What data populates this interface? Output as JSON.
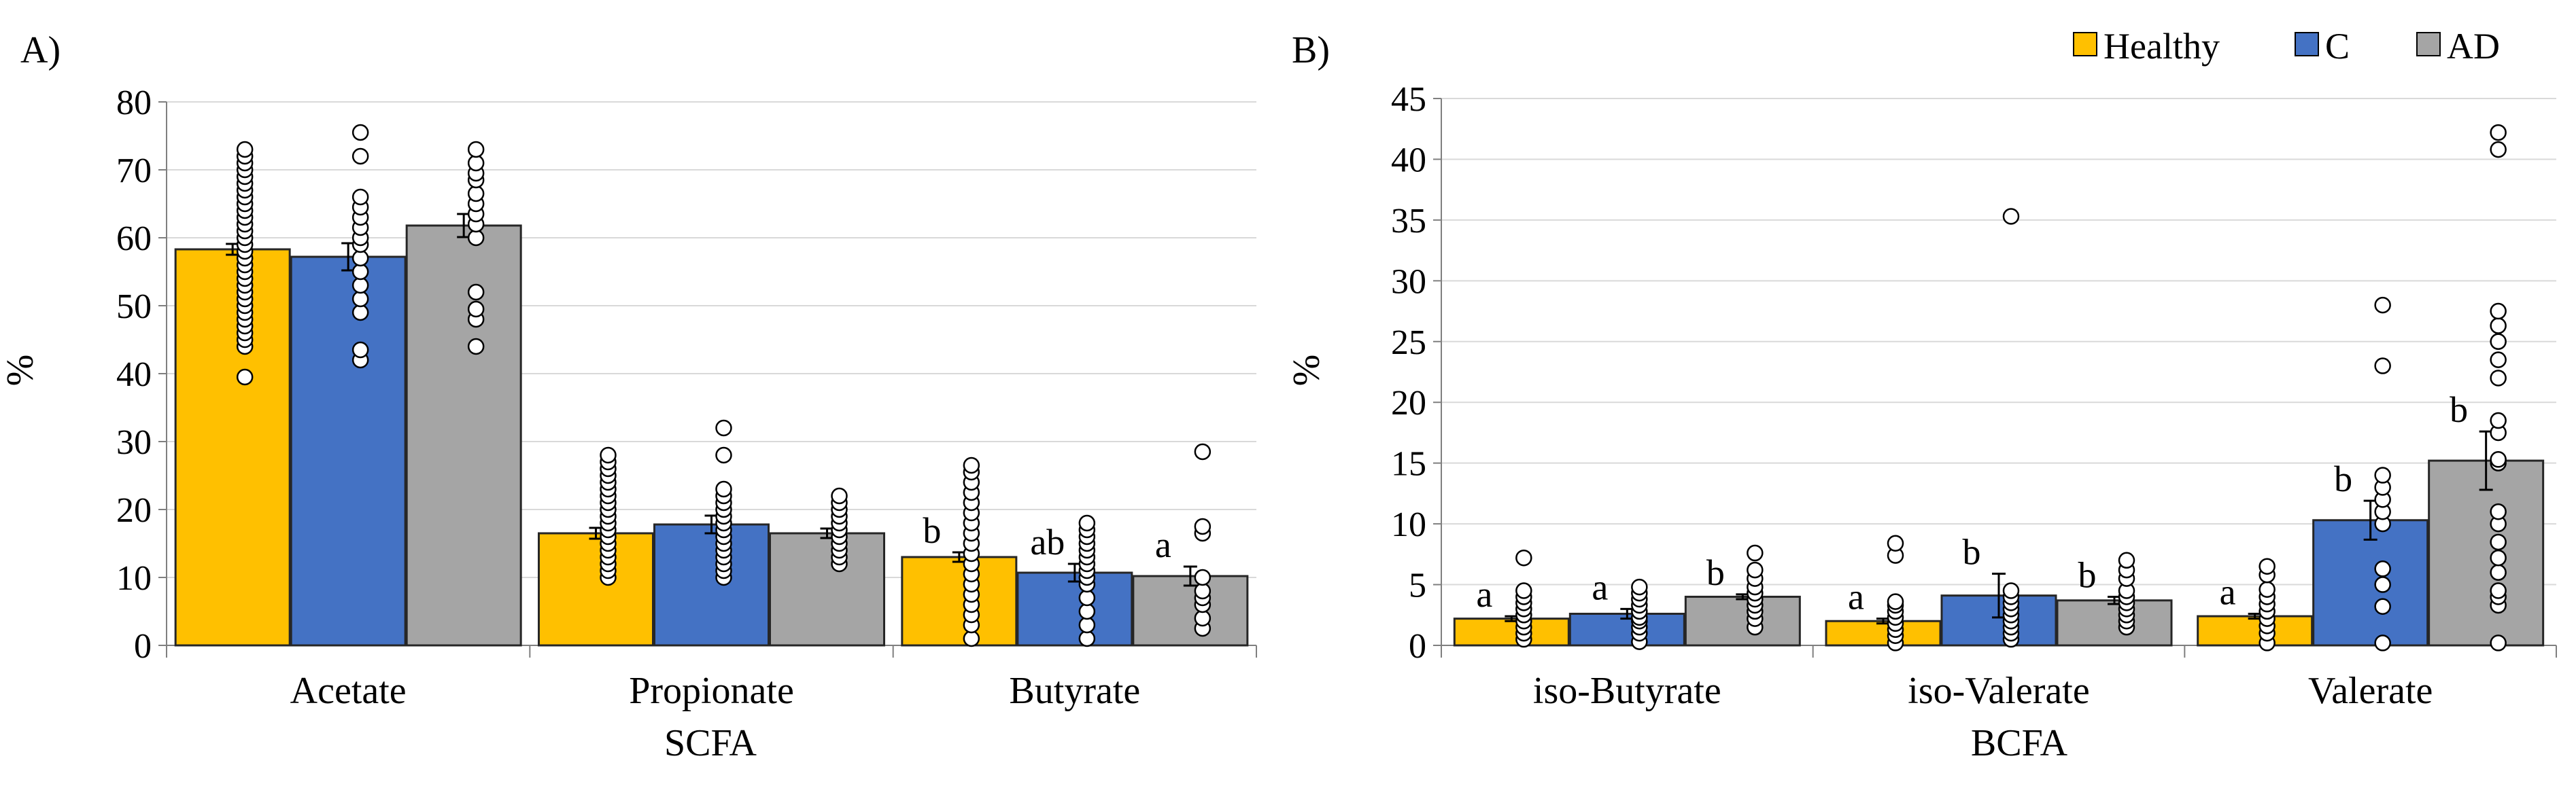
{
  "legend": {
    "series": [
      {
        "name": "Healthy",
        "color": "#FFC000"
      },
      {
        "name": "C",
        "color": "#4472C4"
      },
      {
        "name": "AD",
        "color": "#A5A5A5"
      }
    ]
  },
  "chart_data": [
    {
      "type": "bar",
      "panel_label": "A)",
      "ylabel": "%",
      "xlabel": "SCFA",
      "ylim": [
        0,
        80
      ],
      "yticks": [
        0,
        10,
        20,
        30,
        40,
        50,
        60,
        70,
        80
      ],
      "grid": true,
      "categories": [
        "Acetate",
        "Propionate",
        "Butyrate"
      ],
      "series": [
        {
          "name": "Healthy",
          "values": [
            58.3,
            16.5,
            13.0
          ],
          "errors": [
            0.8,
            0.8,
            0.7
          ],
          "letters": [
            "",
            "",
            "b"
          ]
        },
        {
          "name": "C",
          "values": [
            57.2,
            17.8,
            10.7
          ],
          "errors": [
            2.0,
            1.3,
            1.3
          ],
          "letters": [
            "",
            "",
            "ab"
          ]
        },
        {
          "name": "AD",
          "values": [
            61.8,
            16.5,
            10.2
          ],
          "errors": [
            1.7,
            0.7,
            1.4
          ],
          "letters": [
            "",
            "",
            "a"
          ]
        }
      ],
      "points": [
        [
          [
            39.5,
            44,
            45,
            46,
            47,
            48,
            49,
            50,
            51,
            52,
            53,
            54,
            55,
            56,
            57,
            58,
            59,
            60,
            61,
            62,
            63,
            64,
            65,
            66,
            67,
            68,
            69,
            70,
            71,
            72,
            73
          ],
          [
            42,
            43.5,
            49,
            51,
            53,
            55,
            57,
            59,
            60,
            61.5,
            63,
            64.5,
            66,
            72,
            75.5
          ],
          [
            44,
            48,
            49.5,
            52,
            60,
            62,
            63.5,
            65,
            66.5,
            68.5,
            69.5,
            71,
            73
          ]
        ],
        [
          [
            10,
            11,
            12,
            13,
            14,
            15,
            16,
            17,
            18,
            19,
            20,
            21,
            22,
            23,
            24,
            25,
            26,
            27,
            28
          ],
          [
            10,
            11,
            12,
            13,
            14,
            15,
            16,
            17,
            18,
            19,
            20,
            21,
            22,
            23,
            28,
            32
          ],
          [
            12,
            13,
            14,
            15,
            16,
            17,
            18,
            19,
            20,
            21,
            22
          ]
        ],
        [
          [
            1,
            3,
            4.5,
            6,
            7.5,
            9,
            10.5,
            12,
            13.5,
            15,
            16.5,
            18,
            19.5,
            21,
            22.5,
            24,
            25.5,
            26.5
          ],
          [
            1,
            3,
            5,
            7,
            9,
            10,
            11,
            12,
            13,
            14,
            15,
            16,
            17,
            18
          ],
          [
            2.5,
            4,
            6,
            7,
            8,
            10,
            16.5,
            17.5,
            28.5
          ]
        ]
      ]
    },
    {
      "type": "bar",
      "panel_label": "B)",
      "ylabel": "%",
      "xlabel": "BCFA",
      "ylim": [
        0,
        45
      ],
      "yticks": [
        0,
        5,
        10,
        15,
        20,
        25,
        30,
        35,
        40,
        45
      ],
      "grid": true,
      "categories": [
        "iso-Butyrate",
        "iso-Valerate",
        "Valerate"
      ],
      "series": [
        {
          "name": "Healthy",
          "values": [
            2.2,
            2.0,
            2.4
          ],
          "errors": [
            0.2,
            0.2,
            0.2
          ],
          "letters": [
            "a",
            "a",
            "a"
          ]
        },
        {
          "name": "C",
          "values": [
            2.6,
            4.1,
            10.3
          ],
          "errors": [
            0.4,
            1.8,
            1.6
          ],
          "letters": [
            "a",
            "b",
            "b"
          ]
        },
        {
          "name": "AD",
          "values": [
            4.0,
            3.7,
            15.2
          ],
          "errors": [
            0.2,
            0.3,
            2.4
          ],
          "letters": [
            "b",
            "b",
            "b"
          ]
        }
      ],
      "points": [
        [
          [
            0.5,
            1,
            1.5,
            2,
            2.5,
            3,
            3.5,
            4,
            4.5,
            7.2
          ],
          [
            0.3,
            1,
            1.5,
            2,
            2.3,
            2.8,
            3.3,
            3.8,
            4.3,
            4.8
          ],
          [
            1.5,
            2.2,
            2.8,
            3.3,
            3.8,
            4.3,
            4.8,
            5.5,
            6.2,
            7.6
          ]
        ],
        [
          [
            0.2,
            0.8,
            1.3,
            1.8,
            2.3,
            2.8,
            3.3,
            3.6,
            7.4,
            8.4
          ],
          [
            0.5,
            1,
            1.5,
            2,
            2.5,
            3,
            3.5,
            4,
            4.5,
            35.3
          ],
          [
            1.5,
            2,
            2.5,
            3,
            3.5,
            4,
            4.5,
            5.5,
            6.2,
            7
          ]
        ],
        [
          [
            0.2,
            1,
            1.6,
            2.2,
            2.8,
            3.4,
            4,
            4.6,
            5.8,
            6.5
          ],
          [
            0.2,
            3.2,
            5,
            6.3,
            10,
            11,
            12,
            13,
            14,
            23,
            28
          ],
          [
            0.2,
            3.3,
            4,
            4.5,
            6,
            7.2,
            8.5,
            10,
            11,
            15,
            15.3,
            17.5,
            18.5,
            22,
            23.5,
            25,
            26.3,
            27.5,
            40.8,
            42.2
          ]
        ]
      ]
    }
  ]
}
